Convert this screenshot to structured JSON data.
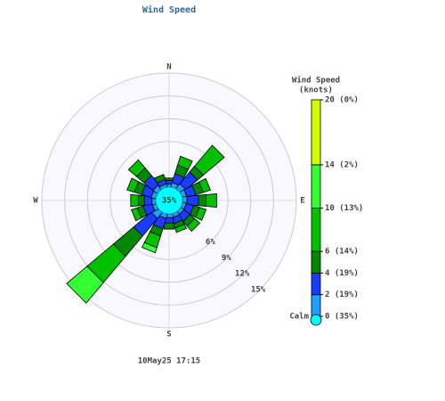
{
  "chart_data": {
    "type": "windrose",
    "title": "Wind Speed",
    "legend_title": "Wind Speed",
    "legend_unit": "(knots)",
    "timestamp": "10May25 17:15",
    "categories": [
      "N",
      null,
      null,
      null,
      "E",
      null,
      null,
      null,
      "S",
      null,
      null,
      null,
      "W",
      null,
      null,
      null
    ],
    "series": [
      {
        "color": "#1ea0ff",
        "values": [
          0.4,
          0.6,
          0.8,
          0.6,
          0.6,
          0.5,
          0.5,
          0.5,
          0.5,
          0.6,
          1,
          0.5,
          0.5,
          0.6,
          0.7,
          0.4
        ]
      },
      {
        "color": "#1a3cff",
        "values": [
          0.5,
          1.2,
          2,
          1.2,
          1.5,
          1,
          1,
          0.8,
          0.7,
          1.4,
          3,
          1.2,
          1,
          1.3,
          1.5,
          0.6
        ]
      },
      {
        "color": "#008800",
        "values": [
          0.3,
          1.2,
          1,
          1,
          1,
          0.8,
          0.8,
          0.6,
          0.8,
          1,
          3.5,
          0.8,
          0.8,
          1,
          1.3,
          0.7
        ]
      },
      {
        "color": "#00c000",
        "values": [
          0,
          1.2,
          3.6,
          1,
          1.4,
          0.9,
          0.9,
          0.6,
          0,
          1.6,
          4.5,
          0.8,
          1,
          1,
          1.4,
          0
        ]
      },
      {
        "color": "#33ff33",
        "values": [
          0,
          0,
          0,
          0,
          0,
          0,
          0,
          0,
          0,
          0.7,
          3.5,
          0,
          0,
          0,
          0,
          0
        ]
      },
      {
        "color": "#ccff00",
        "values": [
          0,
          0,
          0,
          0,
          0,
          0,
          0,
          0,
          0,
          0,
          0,
          0,
          0,
          0,
          0,
          0
        ]
      }
    ],
    "rlim": [
      0,
      15
    ],
    "rticks": [
      {
        "value": 6,
        "label": "6%"
      },
      {
        "value": 9,
        "label": "9%"
      },
      {
        "value": 12,
        "label": "12%"
      },
      {
        "value": 15,
        "label": "15%"
      }
    ],
    "calm": {
      "value": 35,
      "label": "35%",
      "text": "Calm",
      "color": "#00ffff"
    },
    "legend_lim": [
      0,
      20
    ],
    "legend_ticks": [
      {
        "value": 0,
        "label": "0 (35%)"
      },
      {
        "value": 2,
        "label": "2 (19%)"
      },
      {
        "value": 4,
        "label": "4 (19%)"
      },
      {
        "value": 6,
        "label": "6 (14%)"
      },
      {
        "value": 10,
        "label": "10 (13%)"
      },
      {
        "value": 14,
        "label": "14 (2%)"
      },
      {
        "value": 20,
        "label": "20 (0%)"
      }
    ]
  }
}
